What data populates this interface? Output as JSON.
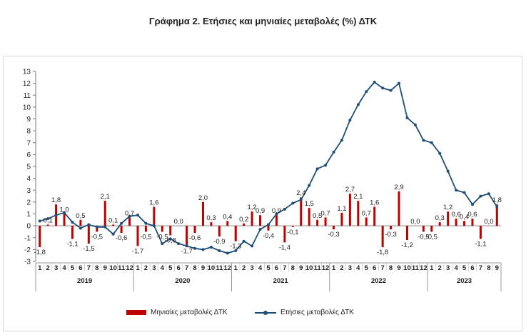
{
  "chart_data": {
    "type": "bar-line",
    "title": "Γράφημα 2. Ετήσιες και μηνιαίες μεταβολές (%) ΔΤΚ",
    "ylim": [
      -3,
      13
    ],
    "yticks": [
      -3,
      -2,
      -1,
      0,
      1,
      2,
      3,
      4,
      5,
      6,
      7,
      8,
      9,
      10,
      11,
      12,
      13
    ],
    "month_labels": [
      "1",
      "2",
      "3",
      "4",
      "5",
      "6",
      "7",
      "8",
      "9",
      "10",
      "11",
      "12",
      "1",
      "2",
      "3",
      "4",
      "5",
      "6",
      "7",
      "8",
      "9",
      "10",
      "11",
      "12",
      "1",
      "2",
      "3",
      "4",
      "5",
      "6",
      "7",
      "8",
      "9",
      "10",
      "11",
      "12",
      "1",
      "2",
      "3",
      "4",
      "5",
      "6",
      "7",
      "8",
      "9",
      "10",
      "11",
      "12",
      "1",
      "2",
      "3",
      "4",
      "5",
      "6",
      "7",
      "8",
      "9"
    ],
    "years": [
      {
        "label": "2019",
        "months": 12
      },
      {
        "label": "2020",
        "months": 12
      },
      {
        "label": "2021",
        "months": 12
      },
      {
        "label": "2022",
        "months": 12
      },
      {
        "label": "2023",
        "months": 9
      }
    ],
    "series": [
      {
        "name": "Μηνιαίες μεταβολές ΔΤΚ",
        "type": "bar",
        "color": "#c00000",
        "values": [
          -1.8,
          0.1,
          1.8,
          1.0,
          -1.1,
          0.5,
          -1.5,
          -0.5,
          2.1,
          0.1,
          -0.6,
          0.7,
          -1.7,
          -0.5,
          1.6,
          -0.5,
          -0.8,
          0.0,
          -1.7,
          -0.6,
          2.0,
          0.3,
          -0.9,
          0.4,
          -1.3,
          0.2,
          1.2,
          0.9,
          -0.4,
          0.9,
          -1.4,
          -0.1,
          2.4,
          1.5,
          0.5,
          0.7,
          -0.3,
          1.1,
          2.7,
          2.1,
          0.7,
          1.6,
          -1.8,
          -0.3,
          2.9,
          -1.2,
          0.0,
          -0.5,
          -0.5,
          0.3,
          1.2,
          0.6,
          0.4,
          0.6,
          -1.1,
          0.0,
          1.8
        ]
      },
      {
        "name": "Ετήσιες μεταβολές ΔΤΚ",
        "type": "line",
        "color": "#1f4e79",
        "values": [
          0.4,
          0.6,
          0.9,
          1.1,
          0.3,
          -0.2,
          0.1,
          -0.1,
          -0.1,
          -0.7,
          0.2,
          0.8,
          0.9,
          0.2,
          0.0,
          -1.5,
          -1.1,
          -1.5,
          -1.7,
          -1.9,
          -2.0,
          -1.8,
          -2.1,
          -2.3,
          -2.1,
          -1.3,
          -1.7,
          -0.3,
          0.1,
          1.0,
          1.4,
          1.9,
          2.2,
          3.4,
          4.8,
          5.1,
          6.2,
          7.2,
          8.9,
          10.2,
          11.3,
          12.1,
          11.6,
          11.4,
          12.0,
          9.1,
          8.5,
          7.2,
          7.0,
          6.1,
          4.6,
          3.0,
          2.8,
          1.8,
          2.5,
          2.7,
          1.6
        ]
      }
    ],
    "labels": [
      {
        "index": 0,
        "text": "-1,8",
        "pos": "below"
      },
      {
        "index": 1,
        "text": "0,1",
        "pos": "above"
      },
      {
        "index": 2,
        "text": "1,8",
        "pos": "above"
      },
      {
        "index": 3,
        "text": "1,0",
        "pos": "above"
      },
      {
        "index": 4,
        "text": "-1,1",
        "pos": "below"
      },
      {
        "index": 5,
        "text": "0,5",
        "pos": "above"
      },
      {
        "index": 6,
        "text": "-1,5",
        "pos": "below"
      },
      {
        "index": 7,
        "text": "-0,5",
        "pos": "below"
      },
      {
        "index": 8,
        "text": "2,1",
        "pos": "above"
      },
      {
        "index": 9,
        "text": "0,1",
        "pos": "above"
      },
      {
        "index": 10,
        "text": "-0,6",
        "pos": "below"
      },
      {
        "index": 11,
        "text": "0,7",
        "pos": "above"
      },
      {
        "index": 12,
        "text": "-1,7",
        "pos": "below"
      },
      {
        "index": 13,
        "text": "-0,5",
        "pos": "below"
      },
      {
        "index": 14,
        "text": "1,6",
        "pos": "above"
      },
      {
        "index": 15,
        "text": "-0,5",
        "pos": "below"
      },
      {
        "index": 16,
        "text": "-0,8",
        "pos": "below"
      },
      {
        "index": 17,
        "text": "0,0",
        "pos": "above"
      },
      {
        "index": 18,
        "text": "-1,7",
        "pos": "below"
      },
      {
        "index": 19,
        "text": "-0,6",
        "pos": "below"
      },
      {
        "index": 20,
        "text": "2,0",
        "pos": "above"
      },
      {
        "index": 21,
        "text": "0,3",
        "pos": "above"
      },
      {
        "index": 22,
        "text": "-0,9",
        "pos": "below"
      },
      {
        "index": 23,
        "text": "0,4",
        "pos": "above"
      },
      {
        "index": 24,
        "text": "-1,3",
        "pos": "below"
      },
      {
        "index": 25,
        "text": "0,2",
        "pos": "above"
      },
      {
        "index": 26,
        "text": "1,2",
        "pos": "above"
      },
      {
        "index": 27,
        "text": "0,9",
        "pos": "above"
      },
      {
        "index": 28,
        "text": "-0,4",
        "pos": "below"
      },
      {
        "index": 29,
        "text": "0,9",
        "pos": "above"
      },
      {
        "index": 30,
        "text": "-1,4",
        "pos": "below"
      },
      {
        "index": 31,
        "text": "-0,1",
        "pos": "below"
      },
      {
        "index": 32,
        "text": "2,4",
        "pos": "above"
      },
      {
        "index": 33,
        "text": "1,5",
        "pos": "above"
      },
      {
        "index": 34,
        "text": "0,5",
        "pos": "above"
      },
      {
        "index": 35,
        "text": "0,7",
        "pos": "above"
      },
      {
        "index": 36,
        "text": "-0,3",
        "pos": "below"
      },
      {
        "index": 37,
        "text": "1,1",
        "pos": "above"
      },
      {
        "index": 38,
        "text": "2,7",
        "pos": "above"
      },
      {
        "index": 39,
        "text": "2,1",
        "pos": "above"
      },
      {
        "index": 40,
        "text": "0,7",
        "pos": "above"
      },
      {
        "index": 41,
        "text": "1,6",
        "pos": "above"
      },
      {
        "index": 42,
        "text": "-1,8",
        "pos": "below"
      },
      {
        "index": 43,
        "text": "-0,3",
        "pos": "below"
      },
      {
        "index": 44,
        "text": "2,9",
        "pos": "above"
      },
      {
        "index": 45,
        "text": "-1,2",
        "pos": "below"
      },
      {
        "index": 46,
        "text": "0,0",
        "pos": "above"
      },
      {
        "index": 47,
        "text": "-0,5",
        "pos": "below"
      },
      {
        "index": 48,
        "text": "-0,5",
        "pos": "below"
      },
      {
        "index": 49,
        "text": "0,3",
        "pos": "above"
      },
      {
        "index": 50,
        "text": "1,2",
        "pos": "above"
      },
      {
        "index": 51,
        "text": "0,6",
        "pos": "above"
      },
      {
        "index": 52,
        "text": "0,4",
        "pos": "above"
      },
      {
        "index": 53,
        "text": "0,6",
        "pos": "above"
      },
      {
        "index": 54,
        "text": "-1,1",
        "pos": "below"
      },
      {
        "index": 55,
        "text": "0,0",
        "pos": "above"
      },
      {
        "index": 56,
        "text": "1,8",
        "pos": "above"
      }
    ]
  }
}
